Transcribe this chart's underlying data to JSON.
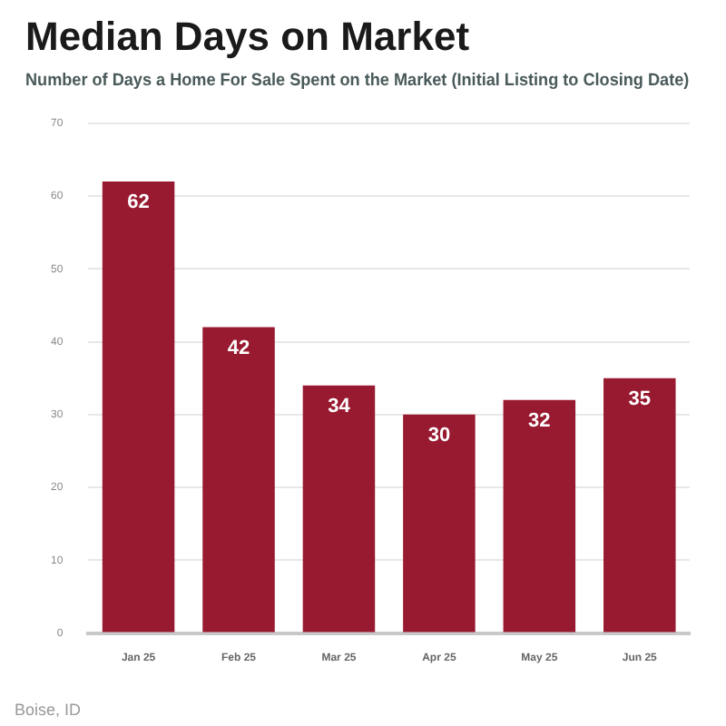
{
  "chart_data": {
    "type": "bar",
    "title": "Median Days on Market",
    "subtitle": "Number of Days a Home For Sale Spent on the Market (Initial Listing to Closing Date)",
    "categories": [
      "Jan 25",
      "Feb 25",
      "Mar 25",
      "Apr 25",
      "May 25",
      "Jun 25"
    ],
    "values": [
      62,
      42,
      34,
      30,
      32,
      35
    ],
    "color": "#981a30",
    "ylim": [
      0,
      70
    ],
    "yticks": [
      0,
      10,
      20,
      30,
      40,
      50,
      60,
      70
    ],
    "grid": "y",
    "data_labels": true,
    "annotations": [
      "Boise, ID"
    ]
  }
}
